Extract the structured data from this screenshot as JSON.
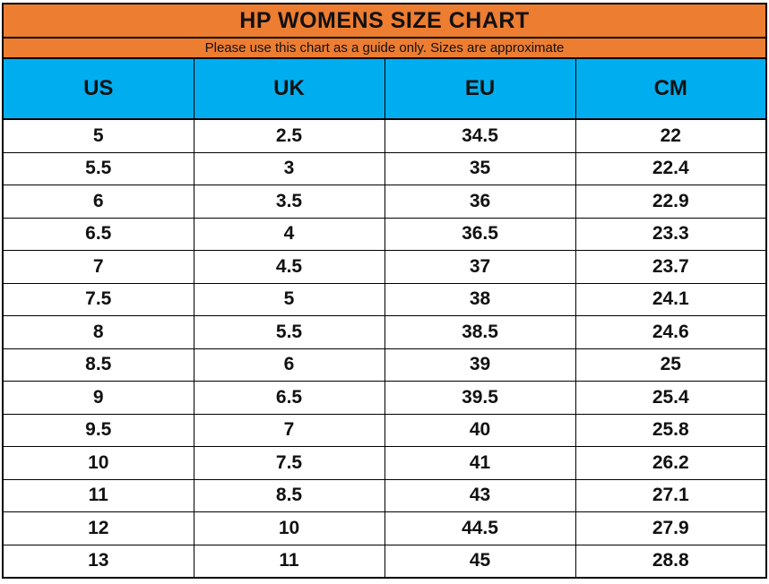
{
  "chart_data": {
    "type": "table",
    "title": "HP WOMENS SIZE CHART",
    "subtitle": "Please use this chart as a guide only. Sizes are approximate",
    "columns": [
      "US",
      "UK",
      "EU",
      "CM"
    ],
    "rows": [
      [
        "5",
        "2.5",
        "34.5",
        "22"
      ],
      [
        "5.5",
        "3",
        "35",
        "22.4"
      ],
      [
        "6",
        "3.5",
        "36",
        "22.9"
      ],
      [
        "6.5",
        "4",
        "36.5",
        "23.3"
      ],
      [
        "7",
        "4.5",
        "37",
        "23.7"
      ],
      [
        "7.5",
        "5",
        "38",
        "24.1"
      ],
      [
        "8",
        "5.5",
        "38.5",
        "24.6"
      ],
      [
        "8.5",
        "6",
        "39",
        "25"
      ],
      [
        "9",
        "6.5",
        "39.5",
        "25.4"
      ],
      [
        "9.5",
        "7",
        "40",
        "25.8"
      ],
      [
        "10",
        "7.5",
        "41",
        "26.2"
      ],
      [
        "11",
        "8.5",
        "43",
        "27.1"
      ],
      [
        "12",
        "10",
        "44.5",
        "27.9"
      ],
      [
        "13",
        "11",
        "45",
        "28.8"
      ]
    ],
    "layout": {
      "grid": true,
      "legend_position": "none"
    }
  },
  "colors": {
    "title_band": "#ED7D31",
    "header_band": "#00AEEF",
    "grid_border": "#000000",
    "text": "#111111",
    "row_background": "#FFFFFF"
  }
}
